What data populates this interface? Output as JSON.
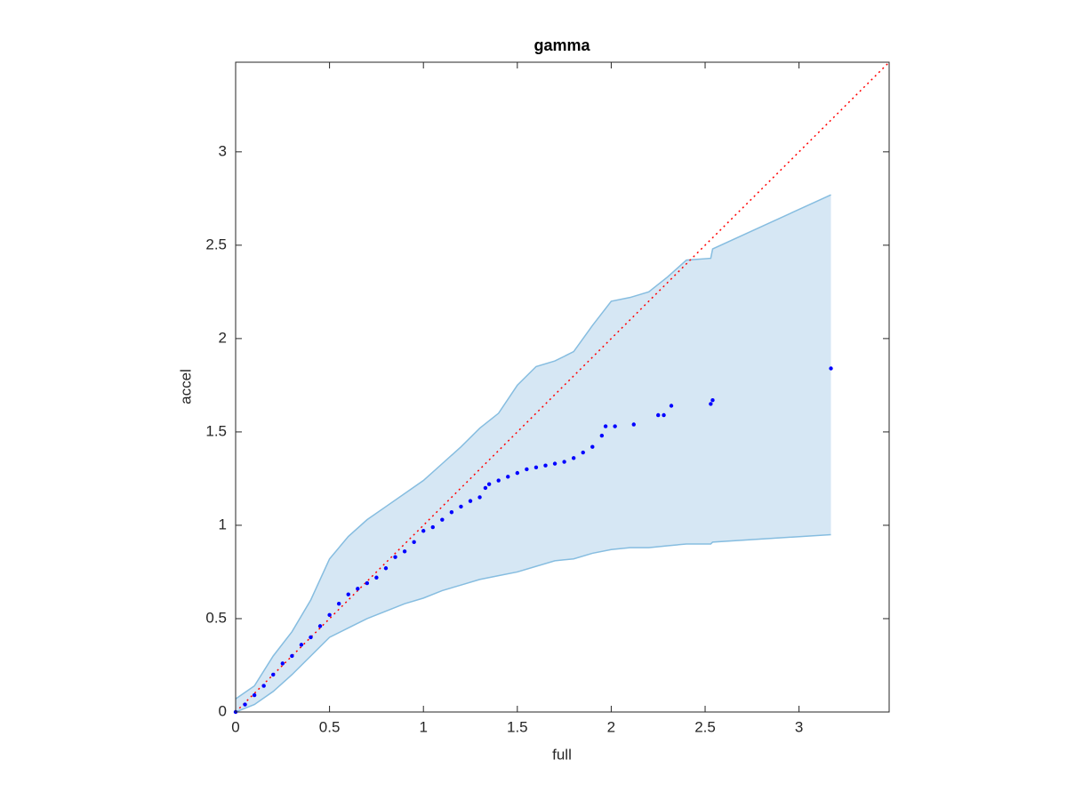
{
  "chart_data": {
    "type": "scatter",
    "title": "gamma",
    "x_label": "full",
    "y_label": "accel",
    "xlim": [
      0,
      3.48
    ],
    "ylim": [
      0,
      3.48
    ],
    "xticks": [
      0,
      0.5,
      1,
      1.5,
      2,
      2.5,
      3
    ],
    "yticks": [
      0,
      0.5,
      1,
      1.5,
      2,
      2.5,
      3
    ],
    "band": {
      "color": "#d6e7f4",
      "edge_color": "#86bde0",
      "x": [
        0,
        0.1,
        0.2,
        0.3,
        0.4,
        0.5,
        0.6,
        0.7,
        0.8,
        0.9,
        1.0,
        1.1,
        1.2,
        1.3,
        1.4,
        1.5,
        1.6,
        1.7,
        1.8,
        1.9,
        2.0,
        2.1,
        2.2,
        2.3,
        2.4,
        2.53,
        2.54,
        3.17
      ],
      "upper": [
        0.07,
        0.14,
        0.3,
        0.43,
        0.6,
        0.82,
        0.94,
        1.03,
        1.1,
        1.17,
        1.24,
        1.33,
        1.42,
        1.52,
        1.6,
        1.75,
        1.85,
        1.88,
        1.93,
        2.07,
        2.2,
        2.22,
        2.25,
        2.33,
        2.42,
        2.43,
        2.48,
        2.77
      ],
      "lower": [
        0,
        0.04,
        0.11,
        0.2,
        0.3,
        0.4,
        0.45,
        0.5,
        0.54,
        0.58,
        0.61,
        0.65,
        0.68,
        0.71,
        0.73,
        0.75,
        0.78,
        0.81,
        0.82,
        0.85,
        0.87,
        0.88,
        0.88,
        0.89,
        0.9,
        0.9,
        0.91,
        0.95
      ]
    },
    "reference_line": {
      "color": "#ff0000",
      "x": [
        0,
        3.48
      ],
      "y": [
        0,
        3.48
      ]
    },
    "points": {
      "color": "#0000ff",
      "x": [
        0,
        0.05,
        0.1,
        0.15,
        0.2,
        0.25,
        0.3,
        0.35,
        0.4,
        0.45,
        0.5,
        0.55,
        0.6,
        0.65,
        0.7,
        0.75,
        0.8,
        0.85,
        0.9,
        0.95,
        1.0,
        1.05,
        1.1,
        1.15,
        1.2,
        1.25,
        1.3,
        1.33,
        1.35,
        1.4,
        1.45,
        1.5,
        1.55,
        1.6,
        1.65,
        1.7,
        1.75,
        1.8,
        1.85,
        1.9,
        1.95,
        1.97,
        2.02,
        2.12,
        2.25,
        2.28,
        2.32,
        2.53,
        2.54,
        3.17
      ],
      "y": [
        0,
        0.04,
        0.09,
        0.14,
        0.2,
        0.26,
        0.3,
        0.36,
        0.4,
        0.46,
        0.52,
        0.58,
        0.63,
        0.66,
        0.69,
        0.72,
        0.77,
        0.83,
        0.86,
        0.91,
        0.97,
        0.99,
        1.03,
        1.07,
        1.1,
        1.13,
        1.15,
        1.2,
        1.22,
        1.24,
        1.26,
        1.28,
        1.3,
        1.31,
        1.32,
        1.33,
        1.34,
        1.36,
        1.39,
        1.42,
        1.48,
        1.53,
        1.53,
        1.54,
        1.59,
        1.59,
        1.64,
        1.65,
        1.67,
        1.84
      ]
    }
  }
}
